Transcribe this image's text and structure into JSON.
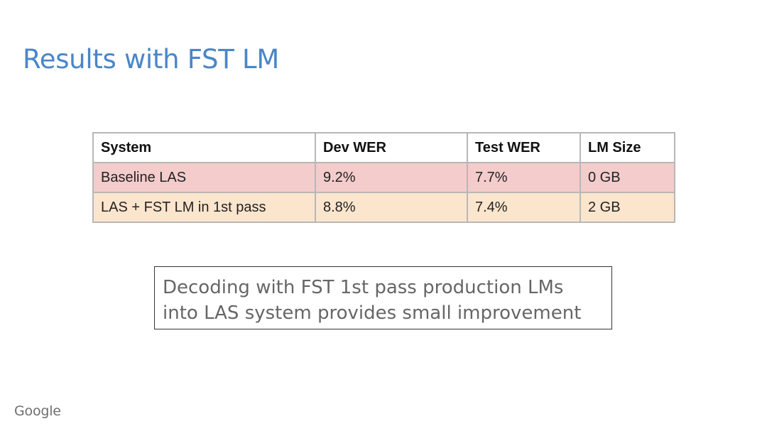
{
  "slide": {
    "title": "Results with FST LM",
    "callout_lines": [
      "Decoding with FST 1st pass production LMs",
      "into LAS system provides small improvement"
    ],
    "logo": "Google"
  },
  "table": {
    "headers": [
      "System",
      "Dev WER",
      "Test WER",
      "LM Size"
    ],
    "rows": [
      [
        "Baseline LAS",
        "9.2%",
        "7.7%",
        "0 GB"
      ],
      [
        "LAS + FST LM in 1st pass",
        "8.8%",
        "7.4%",
        "2 GB"
      ]
    ]
  },
  "colors": {
    "title": "#4a86c8",
    "row_baseline": "#f4cccc",
    "row_fst": "#fce5cd",
    "border": "#b7b7b7"
  }
}
